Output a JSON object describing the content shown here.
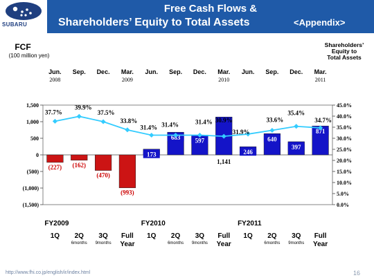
{
  "header": {
    "brand": "SUBARU",
    "title_line1": "Free Cash Flows &",
    "title_line2": "Shareholders’ Equity to Total Assets",
    "title_tag": "<Appendix>"
  },
  "footer": {
    "url": "http://www.fhi.co.jp/english/ir/index.html",
    "page": "16"
  },
  "colors": {
    "header_band": "#1f5aa8",
    "bar_positive": "#1414c8",
    "bar_negative": "#cc1414",
    "ratio_line": "#33ccff",
    "label_positive_bg": "#1414c8",
    "label_negative": "#cc0000"
  },
  "chart_data": {
    "type": "bar",
    "left_axis_title": "FCF",
    "left_axis_unit": "(100 million yen)",
    "right_axis_title": "Shareholders’ Equity to Total Assets",
    "right_axis_title_lines": [
      "Shareholders’",
      "Equity to",
      "Total Assets"
    ],
    "top_periods": [
      {
        "month": "Jun.",
        "year": "2008"
      },
      {
        "month": "Sep.",
        "year": ""
      },
      {
        "month": "Dec.",
        "year": ""
      },
      {
        "month": "Mar.",
        "year": "2009"
      },
      {
        "month": "Jun.",
        "year": ""
      },
      {
        "month": "Sep.",
        "year": ""
      },
      {
        "month": "Dec.",
        "year": ""
      },
      {
        "month": "Mar.",
        "year": "2010"
      },
      {
        "month": "Jun.",
        "year": ""
      },
      {
        "month": "Sep.",
        "year": ""
      },
      {
        "month": "Dec.",
        "year": ""
      },
      {
        "month": "Mar.",
        "year": "2011"
      }
    ],
    "fiscal_years": [
      "FY2009",
      "FY2010",
      "FY2011"
    ],
    "bottom_categories": [
      {
        "label": "1Q",
        "sub": ""
      },
      {
        "label": "2Q",
        "sub": "6months"
      },
      {
        "label": "3Q",
        "sub": "9months"
      },
      {
        "label": "Full",
        "sub": "Year"
      },
      {
        "label": "1Q",
        "sub": ""
      },
      {
        "label": "2Q",
        "sub": "6months"
      },
      {
        "label": "3Q",
        "sub": "9months"
      },
      {
        "label": "Full",
        "sub": "Year"
      },
      {
        "label": "1Q",
        "sub": ""
      },
      {
        "label": "2Q",
        "sub": "6months"
      },
      {
        "label": "3Q",
        "sub": "9months"
      },
      {
        "label": "Full",
        "sub": "Year"
      }
    ],
    "series": [
      {
        "axis": "left",
        "type": "bar",
        "values": [
          -227,
          -162,
          -470,
          -993,
          173,
          683,
          597,
          1141,
          246,
          640,
          397,
          871
        ],
        "labels": [
          "(227)",
          "(162)",
          "(470)",
          "(993)",
          "173",
          "683",
          "597",
          "1,141",
          "246",
          "640",
          "397",
          "871"
        ]
      },
      {
        "axis": "right",
        "type": "line",
        "values": [
          37.7,
          39.9,
          37.5,
          33.8,
          31.4,
          31.4,
          31.4,
          30.9,
          31.9,
          33.6,
          35.4,
          34.7
        ],
        "labels": [
          "37.7%",
          "39.9%",
          "37.5%",
          "33.8%",
          "31.4%",
          "31.4%",
          "31.4%",
          "30.9%",
          "31.9%",
          "33.6%",
          "35.4%",
          "34.7%"
        ]
      }
    ],
    "left_ticks": [
      {
        "v": 1500,
        "label": "1,500"
      },
      {
        "v": 1000,
        "label": "1,000"
      },
      {
        "v": 500,
        "label": "500"
      },
      {
        "v": 0,
        "label": "0"
      },
      {
        "v": -500,
        "label": "(500)"
      },
      {
        "v": -1000,
        "label": "(1,000)"
      },
      {
        "v": -1500,
        "label": "(1,500)"
      }
    ],
    "right_ticks": [
      "45.0%",
      "40.0%",
      "35.0%",
      "30.0%",
      "25.0%",
      "20.0%",
      "15.0%",
      "10.0%",
      "5.0%",
      "0.0%"
    ],
    "ylim_left": [
      -1500,
      1500
    ],
    "ylim_right": [
      0,
      45
    ],
    "grid": false
  }
}
